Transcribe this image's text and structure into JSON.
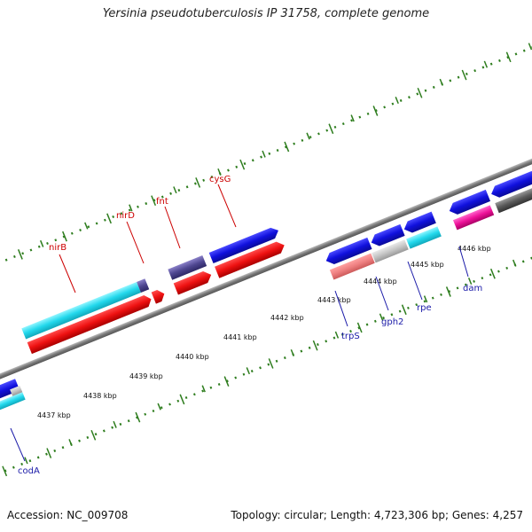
{
  "title": "Yersinia pseudotuberculosis IP 31758, complete genome",
  "footer": {
    "accession": "Accession: NC_009708",
    "summary": "Topology: circular; Length: 4,723,306 bp; Genes: 4,257"
  },
  "colors": {
    "forward_gene_label": "#cc0000",
    "reverse_gene_label": "#1a1aa8",
    "tick": "#2e7d1e",
    "backbone": "#888888"
  },
  "scale": {
    "tick_labels": [
      "4437 kbp",
      "4438 kbp",
      "4439 kbp",
      "4440 kbp",
      "4441 kbp",
      "4442 kbp",
      "4443 kbp",
      "4444 kbp",
      "4445 kbp",
      "4446 kbp"
    ]
  },
  "features": {
    "reverse": [
      {
        "label": "codA",
        "colors": [
          "#1515d8",
          "#b0b0b0",
          "#22c3e8"
        ]
      },
      {
        "label": "trpS",
        "color": "#1515d8"
      },
      {
        "label": "gph2",
        "color": "#1515d8"
      },
      {
        "label": "rpe",
        "color": "#1515d8"
      },
      {
        "label": "dam",
        "color": "#1515d8"
      }
    ],
    "forward": [
      {
        "label": "nirB",
        "color": "#ee1111"
      },
      {
        "label": "nirD",
        "color": "#ee1111"
      },
      {
        "label": "fnt",
        "color": "#ee1111"
      },
      {
        "label": "cysG",
        "color": "#ee1111"
      }
    ]
  }
}
